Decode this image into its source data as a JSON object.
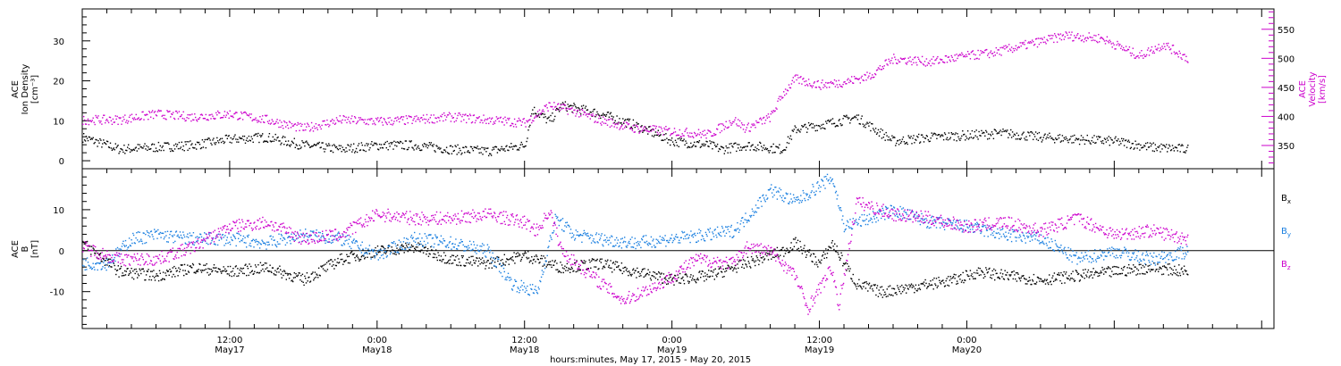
{
  "chart_data": [
    {
      "type": "scatter",
      "panel": "top",
      "ylabel_left": [
        "ACE",
        "Ion Density",
        "[cm⁻³]"
      ],
      "ylabel_right": [
        "ACE",
        "Velocity",
        "[km/s]"
      ],
      "ylim_left": [
        -2,
        38
      ],
      "ylim_right": [
        310,
        585
      ],
      "yticks_left": [
        0,
        10,
        20,
        30
      ],
      "yticks_right": [
        350,
        400,
        450,
        500,
        550
      ],
      "grid": false,
      "colors": {
        "density": "#000000",
        "velocity": "#cc00cc"
      },
      "series": [
        {
          "axis": "left",
          "color": "#000000",
          "x": [
            0,
            3,
            6,
            9,
            12,
            15,
            18,
            21,
            24,
            27,
            30,
            33,
            36,
            36.6,
            38,
            39,
            42,
            45,
            48,
            51,
            52,
            54,
            57,
            58,
            60,
            63,
            66,
            69,
            72,
            75,
            78,
            81,
            84,
            87,
            90
          ],
          "y": [
            6,
            3,
            3.5,
            4,
            5.5,
            6,
            4,
            3,
            4,
            4,
            3,
            2.5,
            4,
            13,
            10,
            14,
            12,
            9,
            5,
            4,
            3,
            4,
            3,
            8,
            9,
            11,
            5,
            6,
            6.5,
            7,
            6,
            5.5,
            5,
            3.5,
            3
          ]
        },
        {
          "axis": "right",
          "color": "#cc00cc",
          "x": [
            0,
            3,
            6,
            9,
            12,
            15,
            18,
            21,
            24,
            27,
            30,
            33,
            36,
            38,
            40,
            42,
            45,
            48,
            51,
            53,
            54,
            56,
            57,
            58,
            60,
            62,
            64,
            66,
            69,
            72,
            74,
            77,
            80,
            83,
            86,
            88,
            90
          ],
          "y": [
            395,
            395,
            405,
            400,
            405,
            395,
            380,
            395,
            392,
            395,
            400,
            395,
            390,
            420,
            410,
            395,
            380,
            375,
            370,
            395,
            380,
            400,
            440,
            465,
            455,
            460,
            470,
            500,
            495,
            505,
            510,
            525,
            540,
            535,
            505,
            525,
            500
          ]
        }
      ]
    },
    {
      "type": "scatter",
      "panel": "bottom",
      "ylabel_left": [
        "ACE",
        "B",
        "[nT]"
      ],
      "ylim": [
        -19,
        20
      ],
      "yticks": [
        -10,
        0,
        10
      ],
      "zero_line": true,
      "grid": false,
      "legend_placement": "right",
      "legend": [
        "B",
        "B",
        "B"
      ],
      "legend_subscripts": [
        "x",
        "y",
        "z"
      ],
      "colors": {
        "Bx": "#000000",
        "By": "#1a7fe0",
        "Bz": "#cc00cc"
      },
      "series": [
        {
          "color": "#000000",
          "x": [
            0,
            3,
            6,
            9,
            12,
            15,
            18,
            21,
            24,
            27,
            30,
            33,
            36,
            39,
            42,
            45,
            48,
            51,
            54,
            57,
            58,
            60,
            61,
            63,
            65,
            67,
            69,
            71,
            73,
            75,
            78,
            81,
            84,
            87,
            90
          ],
          "y": [
            2,
            -5,
            -6,
            -4,
            -5,
            -4,
            -7,
            -2,
            0,
            1,
            -2,
            -3,
            -1,
            -4,
            -3,
            -5,
            -7,
            -6,
            -3,
            0,
            2,
            -3,
            2,
            -8,
            -10,
            -9,
            -8,
            -7,
            -5,
            -6,
            -7,
            -6,
            -5,
            -4,
            -5
          ]
        },
        {
          "color": "#1a7fe0",
          "x": [
            0,
            2,
            4,
            6,
            9,
            12,
            15,
            18,
            21,
            24,
            27,
            30,
            33,
            35,
            37,
            38.5,
            40,
            42,
            45,
            48,
            51,
            53,
            54,
            56,
            58,
            60,
            61,
            62,
            64,
            66,
            69,
            72,
            75,
            78,
            81,
            84,
            87,
            90
          ],
          "y": [
            -3,
            -3,
            3,
            4,
            3,
            3,
            2,
            4,
            3,
            -1,
            3,
            2,
            0,
            -8,
            -10,
            8,
            4,
            3,
            2,
            3,
            4,
            5,
            8,
            15,
            12,
            16,
            18,
            6,
            8,
            10,
            7,
            6,
            4,
            3,
            -2,
            0,
            -2,
            0
          ]
        },
        {
          "color": "#cc00cc",
          "x": [
            0,
            3,
            6,
            9,
            12,
            15,
            18,
            21,
            24,
            27,
            30,
            33,
            36,
            37,
            38,
            39,
            41,
            44,
            47,
            50,
            53,
            54,
            56,
            58,
            59,
            60,
            61,
            61.5,
            63,
            66,
            69,
            72,
            75,
            78,
            81,
            84,
            87,
            90
          ],
          "y": [
            1,
            -2,
            -2,
            1,
            6,
            7,
            3,
            4,
            9,
            8,
            8,
            9,
            7,
            5,
            10,
            0,
            -5,
            -12,
            -8,
            -2,
            -3,
            1,
            0,
            -6,
            -14,
            -9,
            -4,
            -14,
            12,
            9,
            8,
            6,
            7,
            5,
            8,
            4,
            5,
            3
          ]
        }
      ]
    }
  ],
  "x_axis": {
    "range_hours": [
      0,
      97
    ],
    "ticks": [
      {
        "hour": 12,
        "label": "12:00",
        "sublabel": "May17"
      },
      {
        "hour": 24,
        "label": "0:00",
        "sublabel": "May18"
      },
      {
        "hour": 36,
        "label": "12:00",
        "sublabel": "May18"
      },
      {
        "hour": 48,
        "label": "0:00",
        "sublabel": "May19"
      },
      {
        "hour": 60,
        "label": "12:00",
        "sublabel": "May19"
      },
      {
        "hour": 72,
        "label": "0:00",
        "sublabel": "May20"
      }
    ],
    "title": "hours:minutes, May 17, 2015 - May 20, 2015"
  }
}
